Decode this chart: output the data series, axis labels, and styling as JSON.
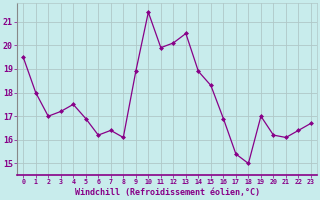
{
  "x": [
    0,
    1,
    2,
    3,
    4,
    5,
    6,
    7,
    8,
    9,
    10,
    11,
    12,
    13,
    14,
    15,
    16,
    17,
    18,
    19,
    20,
    21,
    22,
    23
  ],
  "y": [
    19.5,
    18.0,
    17.0,
    17.2,
    17.5,
    16.9,
    16.2,
    16.4,
    16.1,
    18.9,
    21.4,
    19.9,
    20.1,
    20.5,
    18.9,
    18.3,
    16.9,
    15.4,
    15.0,
    17.0,
    16.2,
    16.1,
    16.4,
    16.7
  ],
  "line_color": "#880088",
  "marker": "D",
  "markersize": 2.0,
  "linewidth": 0.9,
  "xlabel": "Windchill (Refroidissement éolien,°C)",
  "xlim": [
    -0.5,
    23.5
  ],
  "ylim": [
    14.5,
    21.8
  ],
  "yticks": [
    15,
    16,
    17,
    18,
    19,
    20,
    21
  ],
  "xticks": [
    0,
    1,
    2,
    3,
    4,
    5,
    6,
    7,
    8,
    9,
    10,
    11,
    12,
    13,
    14,
    15,
    16,
    17,
    18,
    19,
    20,
    21,
    22,
    23
  ],
  "xtick_labels": [
    "0",
    "1",
    "2",
    "3",
    "4",
    "5",
    "6",
    "7",
    "8",
    "9",
    "10",
    "11",
    "12",
    "13",
    "14",
    "15",
    "16",
    "17",
    "18",
    "19",
    "20",
    "21",
    "22",
    "23"
  ],
  "bg_color": "#c8ecec",
  "grid_color": "#b0c8c8",
  "spine_color": "#888888",
  "tick_color": "#880088",
  "label_color": "#880088",
  "xlabel_fontsize": 6.0,
  "xtick_fontsize": 4.8,
  "ytick_fontsize": 6.0
}
